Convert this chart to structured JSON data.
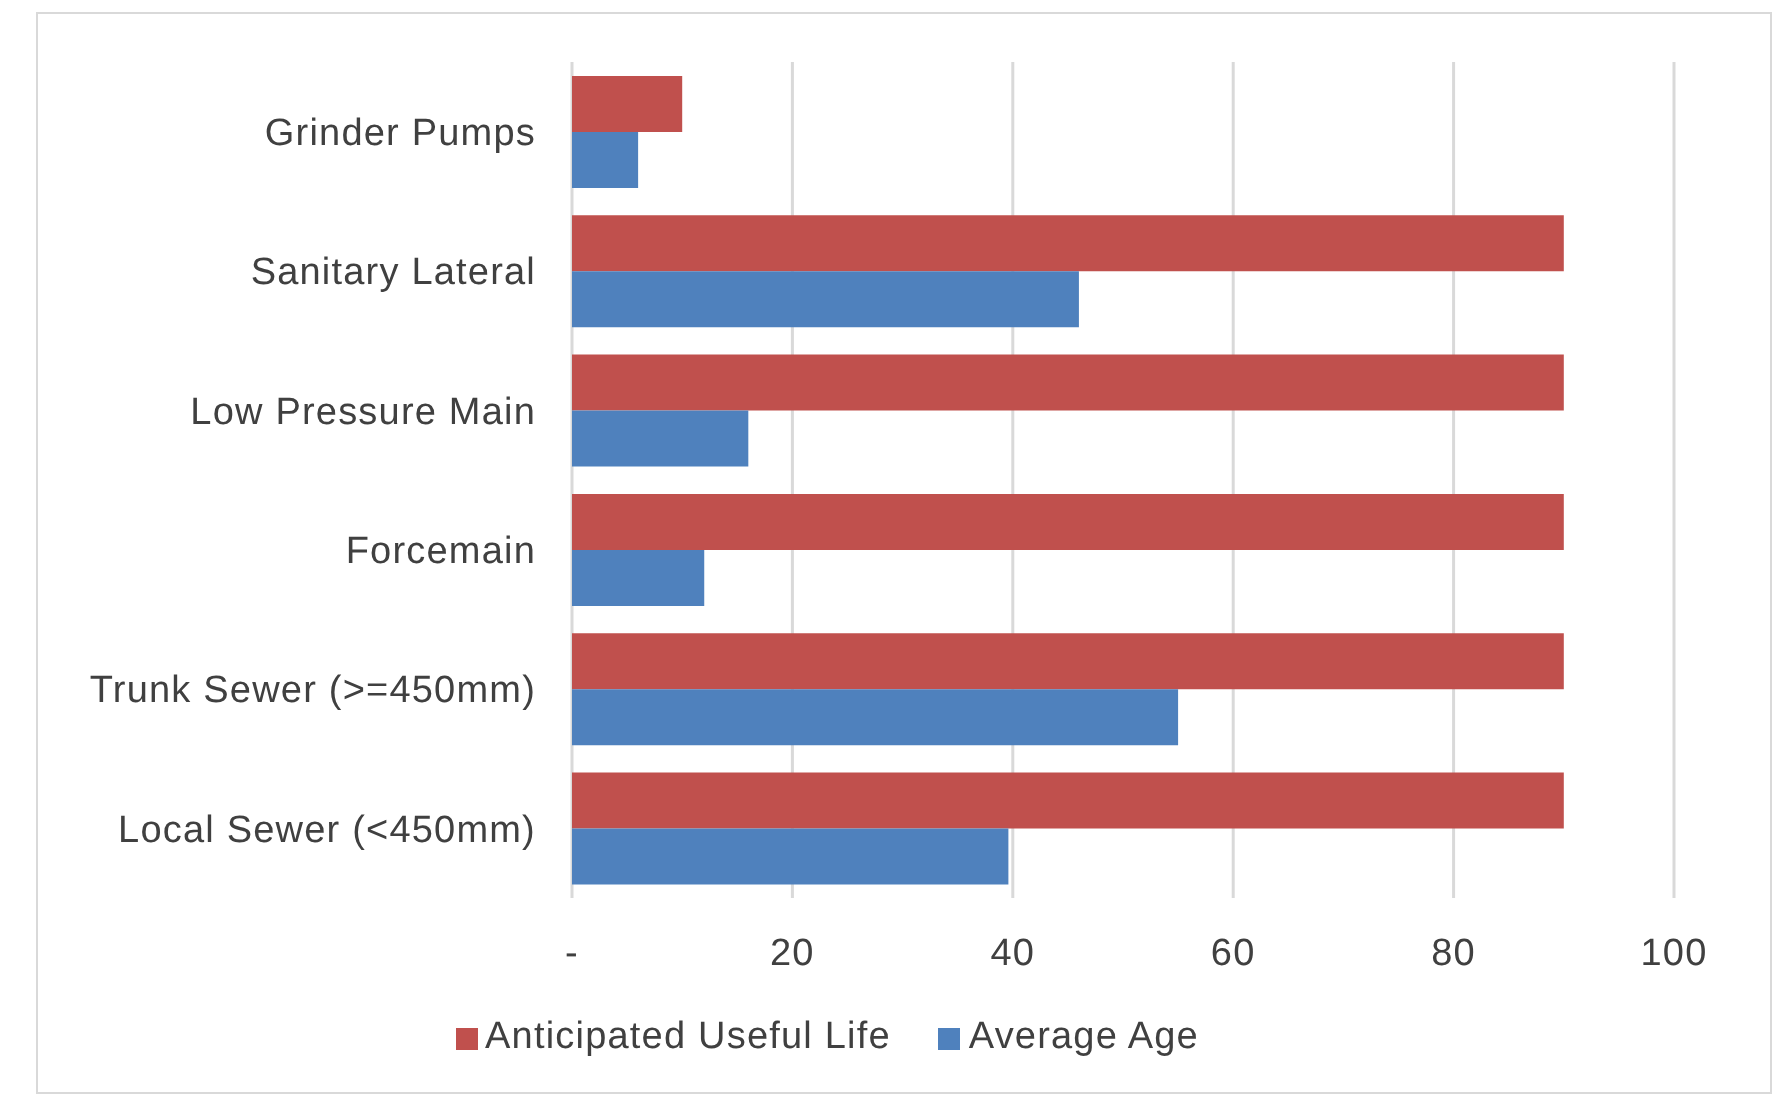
{
  "chart_data": {
    "type": "bar",
    "orientation": "horizontal",
    "categories": [
      "Grinder Pumps",
      "Sanitary Lateral",
      "Low Pressure Main",
      "Forcemain",
      "Trunk Sewer (>=450mm)",
      "Local Sewer (<450mm)"
    ],
    "series": [
      {
        "name": "Anticipated Useful Life",
        "color": "#c0504d",
        "values": [
          10,
          90,
          90,
          90,
          90,
          90
        ]
      },
      {
        "name": "Average Age",
        "color": "#4f81bd",
        "values": [
          6,
          46,
          16,
          12,
          55,
          39.6
        ]
      }
    ],
    "xlim": [
      0,
      100
    ],
    "xticks": [
      {
        "value": 0,
        "label": "-"
      },
      20,
      40,
      60,
      80,
      100
    ],
    "grid": "x",
    "legend": "bottom"
  }
}
